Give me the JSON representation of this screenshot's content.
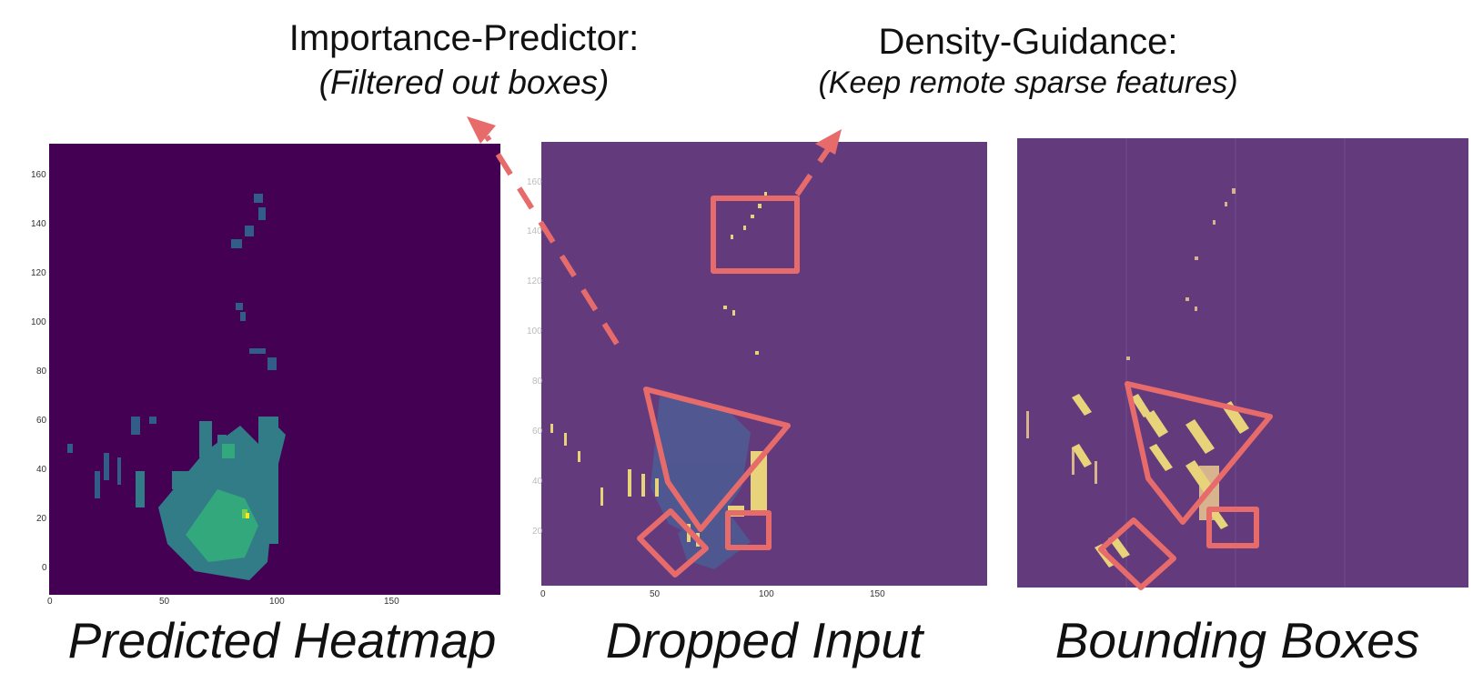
{
  "annotations": {
    "importance_title": "Importance-Predictor:",
    "importance_sub": "(Filtered out boxes)",
    "density_title": "Density-Guidance:",
    "density_sub": "(Keep remote sparse features)"
  },
  "panels": {
    "heatmap_caption": "Predicted Heatmap",
    "dropped_caption": "Dropped Input",
    "boxes_caption": "Bounding Boxes"
  },
  "axes": {
    "y_ticks": [
      "160",
      "140",
      "120",
      "100",
      "80",
      "60",
      "40",
      "20",
      "0"
    ],
    "x_ticks": [
      "0",
      "50",
      "100",
      "150"
    ]
  },
  "colors": {
    "heatmap_bg": "#440154",
    "heatmap_low": "#31688e",
    "heatmap_mid": "#35b779",
    "heatmap_high": "#fde725",
    "dropped_bg": "#633b7d",
    "points": "#e8d27a",
    "box_outline": "#e86b6b"
  }
}
